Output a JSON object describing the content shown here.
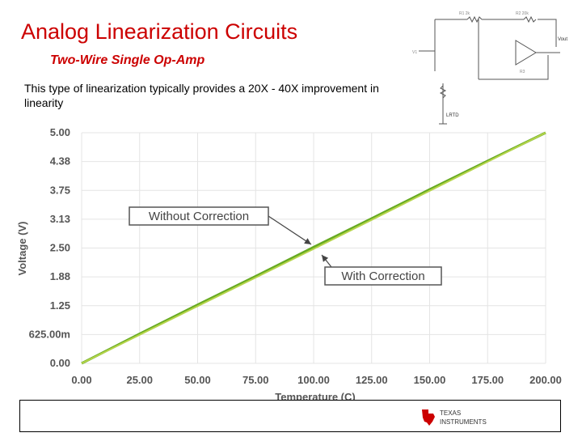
{
  "slide": {
    "title": "Analog Linearization Circuits",
    "subtitle": "Two-Wire Single Op-Amp",
    "description": "This type of linearization typically provides a 20X - 40X improvement in linearity"
  },
  "schematic": {
    "labels": [
      "Vout",
      "LRTD"
    ]
  },
  "logo": {
    "line1": "TEXAS",
    "line2": "INSTRUMENTS",
    "color": "#cc0000"
  },
  "chart_data": {
    "type": "line",
    "xlabel": "Temperature (C)",
    "ylabel": "Voltage (V)",
    "x_ticks": [
      "0.00",
      "25.00",
      "50.00",
      "75.00",
      "100.00",
      "125.00",
      "150.00",
      "175.00",
      "200.00"
    ],
    "y_ticks": [
      "0.00",
      "625.00m",
      "1.25",
      "1.88",
      "2.50",
      "3.13",
      "3.75",
      "4.38",
      "5.00"
    ],
    "xlim": [
      0,
      200
    ],
    "ylim": [
      0,
      5
    ],
    "grid": true,
    "series": [
      {
        "name": "Without Correction",
        "color": "#66aa22",
        "x": [
          0,
          25,
          50,
          75,
          100,
          125,
          150,
          175,
          200
        ],
        "y": [
          0,
          0.64,
          1.27,
          1.89,
          2.52,
          3.14,
          3.77,
          4.39,
          5.0
        ]
      },
      {
        "name": "With Correction",
        "color": "#b5d44a",
        "x": [
          0,
          25,
          50,
          75,
          100,
          125,
          150,
          175,
          200
        ],
        "y": [
          0,
          0.62,
          1.24,
          1.86,
          2.48,
          3.11,
          3.74,
          4.37,
          5.0
        ]
      }
    ],
    "annotations": [
      {
        "text": "Without Correction",
        "x": 100,
        "y": 2.6
      },
      {
        "text": "With Correction",
        "x": 103,
        "y": 2.45
      }
    ]
  }
}
